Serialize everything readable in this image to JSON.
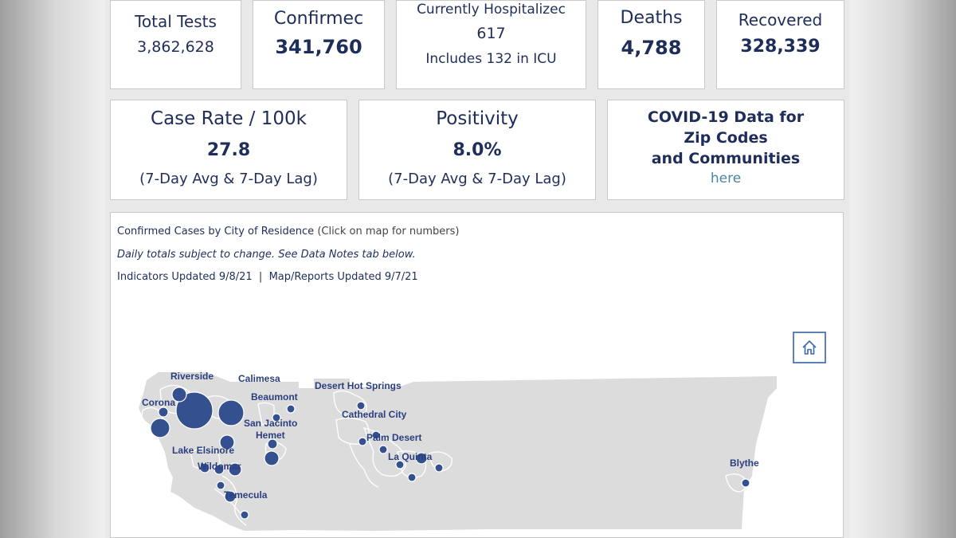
{
  "stats_row1": {
    "total_tests": {
      "label": "Total Tests",
      "value": "3,862,628"
    },
    "confirmed": {
      "label": "Confirmec",
      "value": "341,760"
    },
    "hospitalized": {
      "label": "Currently Hospitalizec",
      "value": "617",
      "sub": "Includes 132 in ICU"
    },
    "deaths": {
      "label": "Deaths",
      "value": "4,788"
    },
    "recovered": {
      "label": "Recovered",
      "value": "328,339"
    }
  },
  "stats_row2": {
    "case_rate": {
      "label": "Case Rate / 100k",
      "value": "27.8",
      "sub": "(7-Day Avg & 7-Day Lag)"
    },
    "positivity": {
      "label": "Positivity",
      "value": "8.0%",
      "sub": "(7-Day Avg & 7-Day Lag)"
    },
    "zip_codes": {
      "line1": "COVID-19 Data for",
      "line2": "Zip Codes",
      "line3": "and Communities",
      "link": "here"
    }
  },
  "map_panel": {
    "title": "Confirmed Cases by City of Residence",
    "title_note": "(Click on map for numbers)",
    "daily_note": "Daily totals subject to change. See Data Notes tab below.",
    "updated": "Indicators Updated 9/8/21  |  Map/Reports Updated 9/7/21",
    "home_icon": "home-icon"
  },
  "map_labels": {
    "riverside": "Riverside",
    "calimesa": "Calimesa",
    "corona": "Corona",
    "beaumont": "Beaumont",
    "desert_hot_springs": "Desert Hot Springs",
    "cathedral_city": "Cathedral City",
    "san_jacinto": "San Jacinto",
    "hemet": "Hemet",
    "palm_desert": "Palm Desert",
    "lake_elsinore": "Lake Elsinore",
    "la_quinta": "La Quinta",
    "wildomar": "Wildomar",
    "blythe": "Blythe",
    "temecula": "Temecula"
  },
  "colors": {
    "text": "#1f2d5a",
    "marker": "#34508f",
    "county": "#dcdcdc",
    "link": "#4a86a8"
  }
}
